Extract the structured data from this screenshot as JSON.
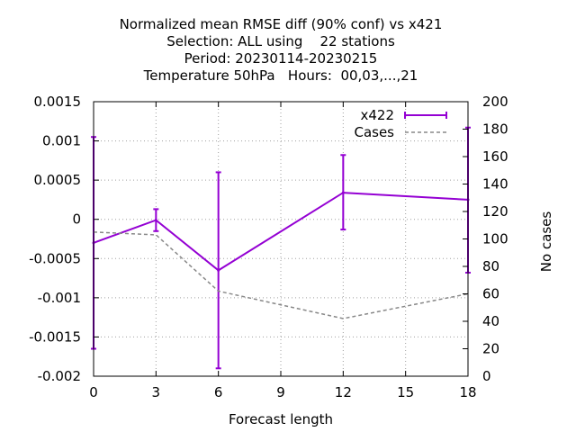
{
  "chart_data": {
    "type": "line",
    "title_lines": [
      "Normalized mean RMSE diff (90% conf) vs x421",
      "Selection: ALL using    22 stations",
      "Period: 20230114-20230215",
      "Temperature 50hPa   Hours:  00,03,...,21"
    ],
    "xlabel": "Forecast length",
    "ylabel_right": "No cases",
    "xlim": [
      0,
      18
    ],
    "ylim": [
      -0.002,
      0.0015
    ],
    "y2lim": [
      0,
      200
    ],
    "x_ticks": [
      0,
      3,
      6,
      9,
      12,
      15,
      18
    ],
    "x_tick_labels": [
      "0",
      "3",
      "6",
      "9",
      "12",
      "15",
      "18"
    ],
    "y_ticks": [
      0.0015,
      0.001,
      0.0005,
      0,
      -0.0005,
      -0.001,
      -0.0015,
      -0.002
    ],
    "y_tick_labels": [
      "0.0015",
      "0.001",
      "0.0005",
      "0",
      "-0.0005",
      "-0.001",
      "-0.0015",
      "-0.002"
    ],
    "y2_ticks": [
      0,
      20,
      40,
      60,
      80,
      100,
      120,
      140,
      160,
      180,
      200
    ],
    "y2_tick_labels": [
      "0",
      "20",
      "40",
      "60",
      "80",
      "100",
      "120",
      "140",
      "160",
      "180",
      "200"
    ],
    "grid": true,
    "legend_position": "top-right",
    "series": [
      {
        "name": "x422",
        "color": "#9400d3",
        "style": "solid-with-errorbars",
        "axis": "left",
        "x": [
          0,
          3,
          6,
          12,
          18
        ],
        "y": [
          -0.0003,
          -1e-05,
          -0.00065,
          0.00034,
          0.00025
        ],
        "err_low": [
          -0.00165,
          -0.00015,
          -0.0019,
          -0.00013,
          -0.00068
        ],
        "err_high": [
          0.00105,
          0.00013,
          0.0006,
          0.00082,
          0.00117
        ]
      },
      {
        "name": "Cases",
        "color": "#888888",
        "style": "dashed",
        "axis": "right",
        "x": [
          0,
          3,
          6,
          12,
          18
        ],
        "y": [
          105,
          103,
          62,
          42,
          60
        ]
      }
    ]
  }
}
